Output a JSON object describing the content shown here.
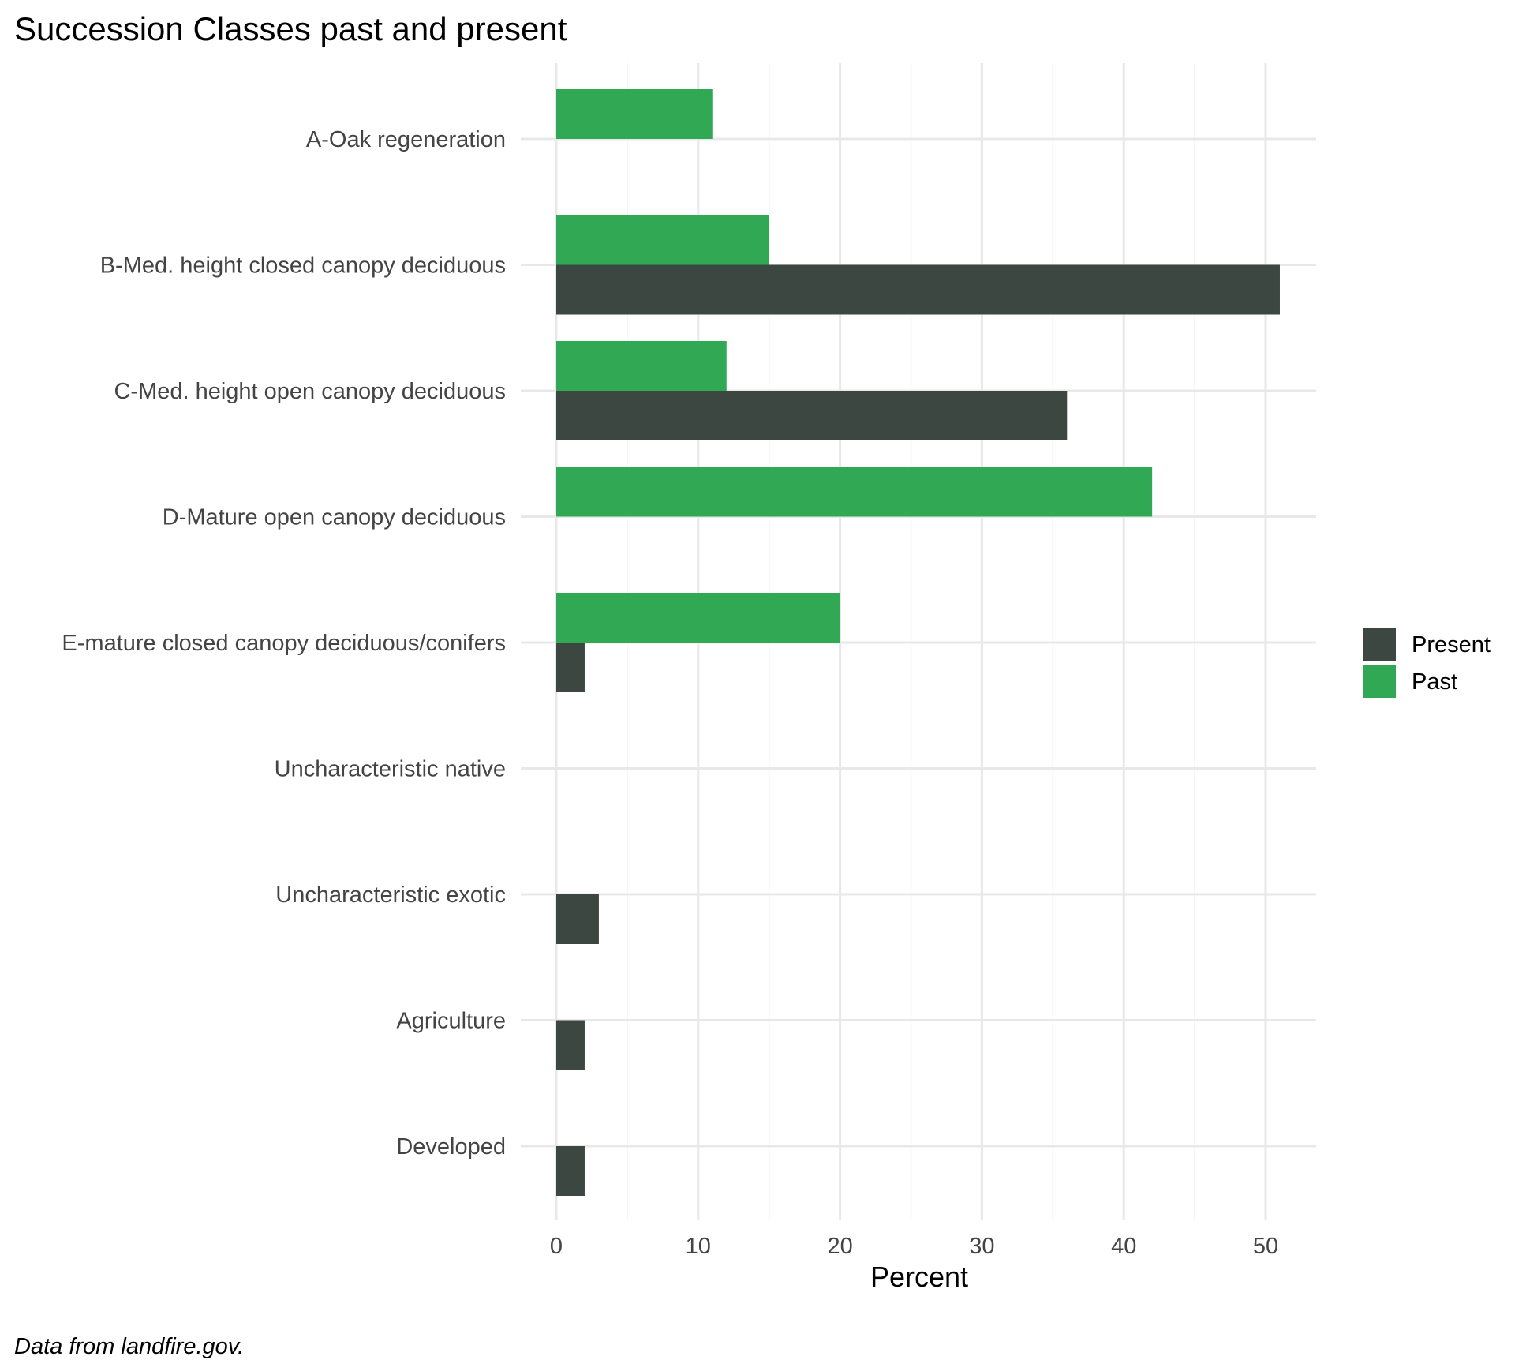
{
  "chart_data": {
    "type": "bar",
    "orientation": "horizontal",
    "title": "Succession Classes past and present",
    "xlabel": "Percent",
    "ylabel": "",
    "caption": "Data from landfire.gov.",
    "xlim": [
      0,
      53.5
    ],
    "xticks": [
      0,
      10,
      20,
      30,
      40,
      50
    ],
    "grid": true,
    "legend_position": "right",
    "categories": [
      "A-Oak regeneration",
      "B-Med. height closed canopy deciduous",
      "C-Med. height open canopy deciduous",
      "D-Mature open canopy deciduous",
      "E-mature closed canopy deciduous/conifers",
      "Uncharacteristic native",
      "Uncharacteristic exotic",
      "Agriculture",
      "Developed"
    ],
    "series": [
      {
        "name": "Present",
        "color": "#3d4741",
        "values": [
          0,
          51,
          36,
          0,
          2,
          0,
          3,
          2,
          2
        ]
      },
      {
        "name": "Past",
        "color": "#31a853",
        "values": [
          11,
          15,
          12,
          42,
          20,
          0,
          0,
          0,
          0
        ]
      }
    ]
  }
}
